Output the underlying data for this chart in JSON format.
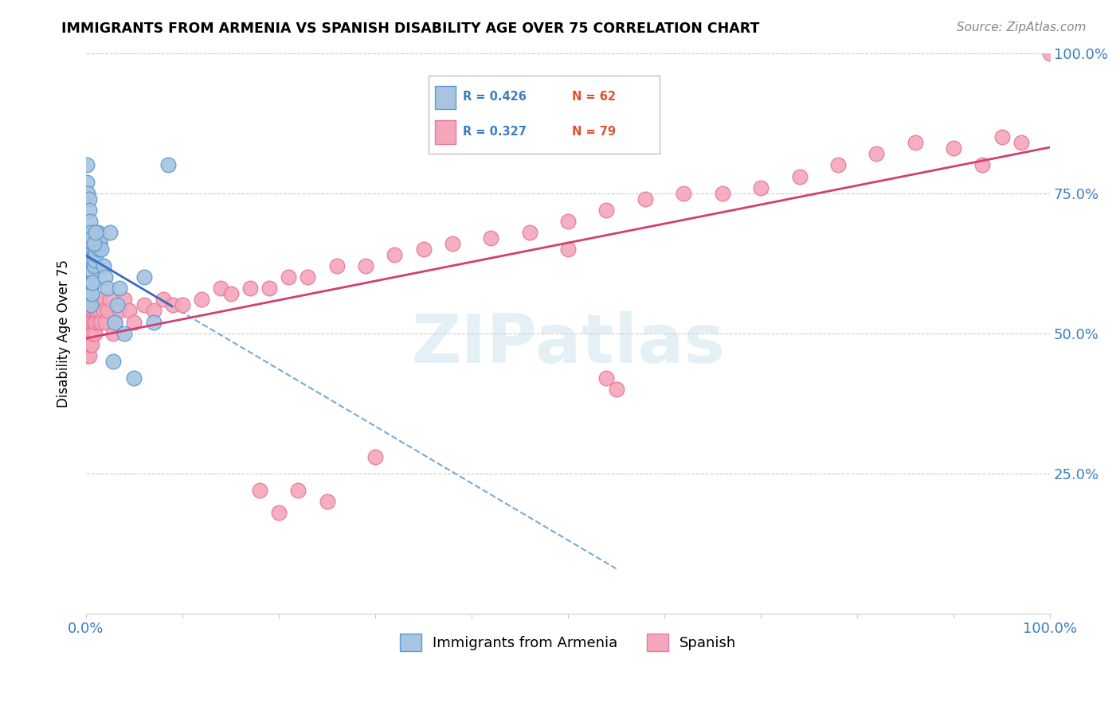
{
  "title": "IMMIGRANTS FROM ARMENIA VS SPANISH DISABILITY AGE OVER 75 CORRELATION CHART",
  "source_text": "Source: ZipAtlas.com",
  "ylabel": "Disability Age Over 75",
  "xlim": [
    0,
    1.0
  ],
  "ylim": [
    0,
    1.0
  ],
  "ytick_labels": [
    "25.0%",
    "50.0%",
    "75.0%",
    "100.0%"
  ],
  "ytick_positions": [
    0.25,
    0.5,
    0.75,
    1.0
  ],
  "watermark": "ZIPatlas",
  "color_armenia": "#a8c4e0",
  "color_spanish": "#f4a7b9",
  "color_armenia_edge": "#5b9bd5",
  "color_spanish_edge": "#e879a0",
  "trendline_armenia_color": "#3a6abf",
  "trendline_spanish_color": "#d04070",
  "trendline_dashed_color": "#7aaad0",
  "armenia_x": [
    0.001,
    0.001,
    0.001,
    0.002,
    0.002,
    0.002,
    0.002,
    0.003,
    0.003,
    0.003,
    0.003,
    0.003,
    0.004,
    0.004,
    0.004,
    0.004,
    0.005,
    0.005,
    0.005,
    0.005,
    0.005,
    0.006,
    0.006,
    0.006,
    0.007,
    0.007,
    0.007,
    0.008,
    0.008,
    0.009,
    0.009,
    0.01,
    0.01,
    0.011,
    0.012,
    0.013,
    0.014,
    0.015,
    0.016,
    0.018,
    0.02,
    0.022,
    0.025,
    0.028,
    0.03,
    0.032,
    0.035,
    0.04,
    0.05,
    0.06,
    0.07,
    0.085,
    0.001,
    0.001,
    0.002,
    0.003,
    0.003,
    0.004,
    0.005,
    0.006,
    0.008,
    0.01
  ],
  "armenia_y": [
    0.68,
    0.65,
    0.62,
    0.66,
    0.64,
    0.62,
    0.6,
    0.64,
    0.62,
    0.6,
    0.58,
    0.56,
    0.63,
    0.61,
    0.59,
    0.57,
    0.62,
    0.6,
    0.58,
    0.57,
    0.55,
    0.61,
    0.59,
    0.57,
    0.63,
    0.61,
    0.59,
    0.64,
    0.62,
    0.65,
    0.63,
    0.66,
    0.64,
    0.67,
    0.68,
    0.65,
    0.66,
    0.67,
    0.65,
    0.62,
    0.6,
    0.58,
    0.68,
    0.45,
    0.52,
    0.55,
    0.58,
    0.5,
    0.42,
    0.6,
    0.52,
    0.8,
    0.8,
    0.77,
    0.75,
    0.74,
    0.72,
    0.7,
    0.68,
    0.67,
    0.66,
    0.68
  ],
  "spanish_x": [
    0.001,
    0.001,
    0.002,
    0.002,
    0.003,
    0.003,
    0.003,
    0.004,
    0.004,
    0.005,
    0.005,
    0.006,
    0.006,
    0.007,
    0.007,
    0.008,
    0.008,
    0.009,
    0.009,
    0.01,
    0.01,
    0.011,
    0.012,
    0.013,
    0.014,
    0.015,
    0.016,
    0.018,
    0.02,
    0.022,
    0.025,
    0.028,
    0.03,
    0.035,
    0.04,
    0.045,
    0.05,
    0.06,
    0.07,
    0.08,
    0.09,
    0.1,
    0.12,
    0.14,
    0.15,
    0.17,
    0.19,
    0.21,
    0.23,
    0.26,
    0.29,
    0.32,
    0.35,
    0.38,
    0.42,
    0.46,
    0.5,
    0.54,
    0.58,
    0.62,
    0.66,
    0.7,
    0.74,
    0.78,
    0.82,
    0.86,
    0.9,
    0.93,
    0.95,
    0.97,
    0.5,
    0.54,
    0.55,
    0.3,
    0.18,
    0.2,
    0.22,
    0.25,
    1.0
  ],
  "spanish_y": [
    0.52,
    0.48,
    0.5,
    0.46,
    0.54,
    0.5,
    0.46,
    0.52,
    0.48,
    0.54,
    0.5,
    0.52,
    0.48,
    0.54,
    0.5,
    0.56,
    0.52,
    0.54,
    0.5,
    0.56,
    0.52,
    0.54,
    0.55,
    0.52,
    0.54,
    0.56,
    0.52,
    0.54,
    0.52,
    0.54,
    0.56,
    0.5,
    0.52,
    0.54,
    0.56,
    0.54,
    0.52,
    0.55,
    0.54,
    0.56,
    0.55,
    0.55,
    0.56,
    0.58,
    0.57,
    0.58,
    0.58,
    0.6,
    0.6,
    0.62,
    0.62,
    0.64,
    0.65,
    0.66,
    0.67,
    0.68,
    0.7,
    0.72,
    0.74,
    0.75,
    0.75,
    0.76,
    0.78,
    0.8,
    0.82,
    0.84,
    0.83,
    0.8,
    0.85,
    0.84,
    0.65,
    0.42,
    0.4,
    0.28,
    0.22,
    0.18,
    0.22,
    0.2,
    1.0
  ],
  "legend_r1": "R = 0.426",
  "legend_n1": "N = 62",
  "legend_r2": "R = 0.327",
  "legend_n2": "N = 79"
}
